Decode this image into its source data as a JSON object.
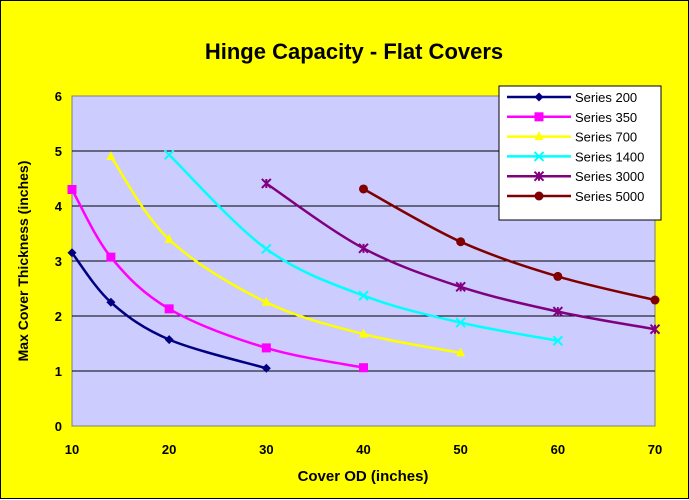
{
  "chart_data": {
    "type": "line",
    "title": "Hinge Capacity - Flat Covers",
    "xlabel": "Cover OD (inches)",
    "ylabel": "Max Cover Thickness (inches)",
    "xlim": [
      10,
      70
    ],
    "ylim": [
      0,
      6
    ],
    "xticks": [
      10,
      20,
      30,
      40,
      50,
      60,
      70
    ],
    "yticks": [
      0,
      1,
      2,
      3,
      4,
      5,
      6
    ],
    "grid": "horizontal",
    "smooth": true,
    "legend": "top-right",
    "plot_background": "#ccccff",
    "figure_background": "#ffff00",
    "series": [
      {
        "name": "Series 200",
        "color": "#000080",
        "marker": "diamond",
        "x": [
          10,
          14,
          20,
          30
        ],
        "y": [
          3.15,
          2.25,
          1.57,
          1.05
        ]
      },
      {
        "name": "Series 350",
        "color": "#ff00ff",
        "marker": "square",
        "x": [
          10,
          14,
          20,
          30,
          40
        ],
        "y": [
          4.3,
          3.07,
          2.13,
          1.42,
          1.06
        ]
      },
      {
        "name": "Series 700",
        "color": "#ffff00",
        "marker": "triangle",
        "x": [
          14,
          20,
          30,
          40,
          50
        ],
        "y": [
          4.9,
          3.39,
          2.25,
          1.67,
          1.33
        ]
      },
      {
        "name": "Series 1400",
        "color": "#00ffff",
        "marker": "x",
        "x": [
          20,
          30,
          40,
          50,
          60
        ],
        "y": [
          4.93,
          3.22,
          2.37,
          1.88,
          1.55
        ]
      },
      {
        "name": "Series 3000",
        "color": "#800080",
        "marker": "star",
        "x": [
          30,
          40,
          50,
          60,
          70
        ],
        "y": [
          4.41,
          3.23,
          2.53,
          2.08,
          1.76
        ]
      },
      {
        "name": "Series 5000",
        "color": "#800000",
        "marker": "circle",
        "x": [
          40,
          50,
          60,
          70
        ],
        "y": [
          4.31,
          3.35,
          2.72,
          2.29
        ]
      }
    ]
  }
}
